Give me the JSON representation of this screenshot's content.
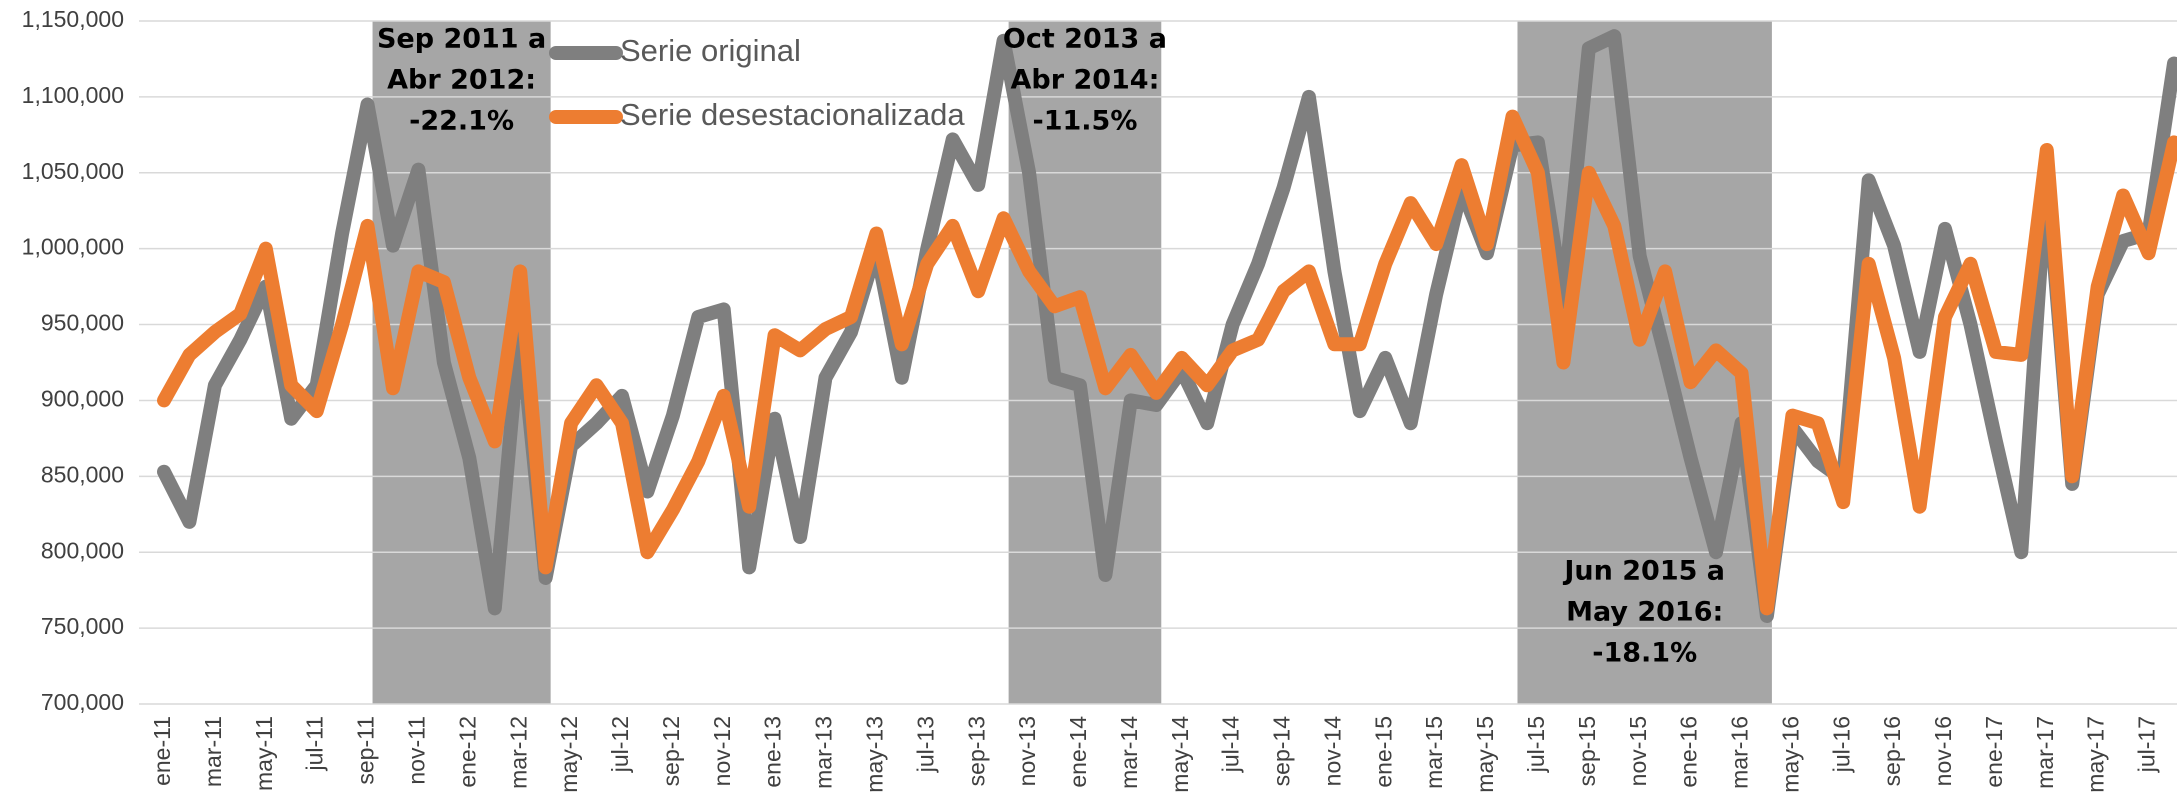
{
  "chart_data": {
    "type": "line",
    "categories": [
      "ene-11",
      null,
      "mar-11",
      null,
      "may-11",
      null,
      "jul-11",
      null,
      "sep-11",
      null,
      "nov-11",
      null,
      "ene-12",
      null,
      "mar-12",
      null,
      "may-12",
      null,
      "jul-12",
      null,
      "sep-12",
      null,
      "nov-12",
      null,
      "ene-13",
      null,
      "mar-13",
      null,
      "may-13",
      null,
      "jul-13",
      null,
      "sep-13",
      null,
      "nov-13",
      null,
      "ene-14",
      null,
      "mar-14",
      null,
      "may-14",
      null,
      "jul-14",
      null,
      "sep-14",
      null,
      "nov-14",
      null,
      "ene-15",
      null,
      "mar-15",
      null,
      "may-15",
      null,
      "jul-15",
      null,
      "sep-15",
      null,
      "nov-15",
      null,
      "ene-16",
      null,
      "mar-16",
      null,
      "may-16",
      null,
      "jul-16",
      null,
      "sep-16",
      null,
      "nov-16",
      null,
      "ene-17",
      null,
      "mar-17",
      null,
      "may-17",
      null,
      "jul-17",
      null
    ],
    "series": [
      {
        "name": "Serie original",
        "color": "#7f7f7f",
        "values": [
          853000,
          820000,
          910000,
          940000,
          975000,
          888000,
          910000,
          1010000,
          1095000,
          1002000,
          1052000,
          925000,
          862000,
          763000,
          950000,
          783000,
          870000,
          885000,
          903000,
          840000,
          890000,
          955000,
          960000,
          790000,
          888000,
          810000,
          915000,
          945000,
          1000000,
          915000,
          1000000,
          1072000,
          1042000,
          1137000,
          1050000,
          915000,
          910000,
          785000,
          900000,
          897000,
          920000,
          885000,
          950000,
          990000,
          1040000,
          1100000,
          985000,
          893000,
          928000,
          885000,
          970000,
          1040000,
          997000,
          1068000,
          1070000,
          965000,
          1132000,
          1140000,
          995000,
          930000,
          862000,
          800000,
          885000,
          758000,
          882000,
          860000,
          848000,
          1045000,
          1002000,
          932000,
          1013000,
          950000,
          873000,
          800000,
          1050000,
          845000,
          970000,
          1005000,
          1010000,
          1122000
        ]
      },
      {
        "name": "Serie desestacionalizada",
        "color": "#ed7d31",
        "values": [
          900000,
          930000,
          945000,
          957000,
          1000000,
          910000,
          893000,
          950000,
          1015000,
          908000,
          985000,
          978000,
          915000,
          873000,
          985000,
          790000,
          885000,
          910000,
          885000,
          800000,
          828000,
          860000,
          903000,
          830000,
          943000,
          933000,
          947000,
          955000,
          1010000,
          937000,
          990000,
          1015000,
          972000,
          1020000,
          985000,
          962000,
          968000,
          908000,
          930000,
          905000,
          928000,
          910000,
          933000,
          940000,
          972000,
          985000,
          937000,
          937000,
          990000,
          1030000,
          1003000,
          1055000,
          1003000,
          1087000,
          1050000,
          925000,
          1050000,
          1015000,
          940000,
          985000,
          912000,
          933000,
          918000,
          763000,
          890000,
          885000,
          833000,
          990000,
          928000,
          830000,
          955000,
          990000,
          932000,
          930000,
          1065000,
          850000,
          975000,
          1035000,
          997000,
          1070000
        ]
      }
    ],
    "ylim": [
      700000,
      1150000
    ],
    "yticks": [
      {
        "value": 700000,
        "label": "700,000"
      },
      {
        "value": 750000,
        "label": "750,000"
      },
      {
        "value": 800000,
        "label": "800,000"
      },
      {
        "value": 850000,
        "label": "850,000"
      },
      {
        "value": 900000,
        "label": "900,000"
      },
      {
        "value": 950000,
        "label": "950,000"
      },
      {
        "value": 1000000,
        "label": "1,000,000"
      },
      {
        "value": 1050000,
        "label": "1,050,000"
      },
      {
        "value": 1100000,
        "label": "1,100,000"
      },
      {
        "value": 1150000,
        "label": "1,150,000"
      }
    ],
    "grid": true,
    "shade_color": "#a6a6a6",
    "annotations": [
      {
        "start": 8,
        "end": 15,
        "valign": "top",
        "lines": [
          "Sep 2011  a",
          "Abr 2012:",
          "-22.1%"
        ]
      },
      {
        "start": 33,
        "end": 39,
        "valign": "top",
        "lines": [
          "Oct 2013  a",
          "Abr 2014:",
          "-11.5%"
        ]
      },
      {
        "start": 53,
        "end": 63,
        "valign": "bottom",
        "lines": [
          "Jun 2015  a",
          "May 2016:",
          "-18.1%"
        ]
      }
    ]
  }
}
